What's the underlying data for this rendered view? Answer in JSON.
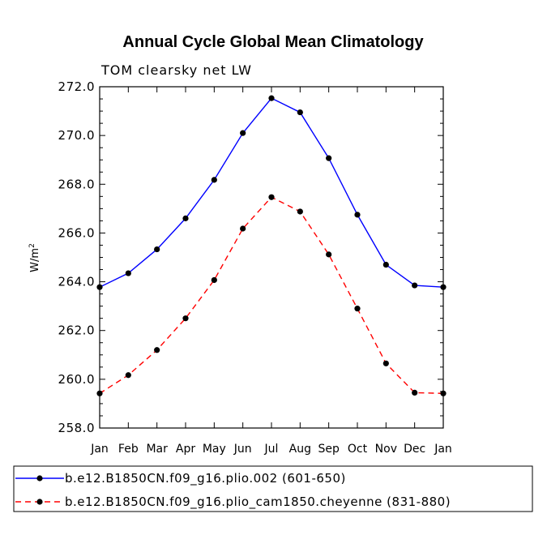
{
  "chart_data": {
    "type": "line",
    "title": "Annual Cycle Global Mean Climatology",
    "subtitle": "TOM clearsky net LW",
    "xlabel": "",
    "ylabel": "W/m",
    "ylabel_superscript": "2",
    "categories": [
      "Jan",
      "Feb",
      "Mar",
      "Apr",
      "May",
      "Jun",
      "Jul",
      "Aug",
      "Sep",
      "Oct",
      "Nov",
      "Dec",
      "Jan"
    ],
    "ylim": [
      258.0,
      272.0
    ],
    "yticks": [
      "258.0",
      "260.0",
      "262.0",
      "264.0",
      "266.0",
      "268.0",
      "270.0",
      "272.0"
    ],
    "series": [
      {
        "name": "b.e12.B1850CN.f09_g16.plio.002 (601-650)",
        "color": "#0000ff",
        "dash": "solid",
        "values": [
          263.78,
          264.35,
          265.33,
          266.6,
          268.18,
          270.1,
          271.53,
          270.95,
          269.07,
          266.75,
          264.7,
          263.85,
          263.78
        ]
      },
      {
        "name": "b.e12.B1850CN.f09_g16.plio_cam1850.cheyenne (831-880)",
        "color": "#ff0000",
        "dash": "dashed",
        "values": [
          259.42,
          260.17,
          261.2,
          262.5,
          264.07,
          266.18,
          267.47,
          266.88,
          265.12,
          262.9,
          260.65,
          259.45,
          259.42
        ]
      }
    ]
  }
}
